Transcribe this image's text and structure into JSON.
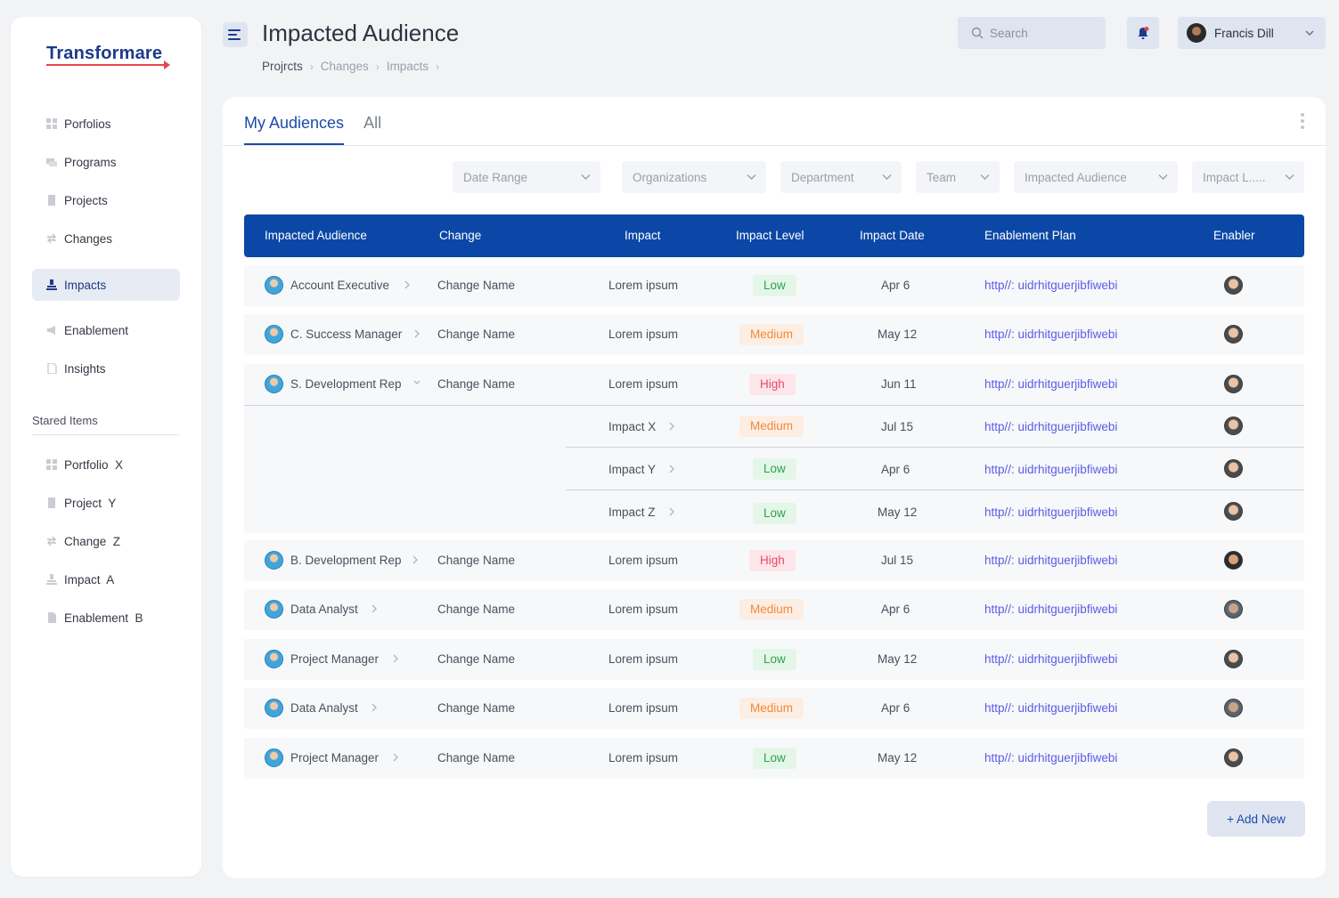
{
  "brand": {
    "name": "Transformare",
    "accent": "#e8434f",
    "primary": "#0b47a6"
  },
  "sidebar": {
    "items": [
      {
        "label": "Porfolios",
        "icon": "grid-icon"
      },
      {
        "label": "Programs",
        "icon": "stack-icon"
      },
      {
        "label": "Projects",
        "icon": "document-icon"
      },
      {
        "label": "Changes",
        "icon": "swap-arrows-icon"
      },
      {
        "label": "Impacts",
        "icon": "impact-icon"
      },
      {
        "label": "Enablement",
        "icon": "megaphone-icon"
      },
      {
        "label": "Insights",
        "icon": "file-icon"
      }
    ],
    "stared_title": "Stared Items",
    "stared": [
      {
        "label": "Portfolio  X",
        "icon": "grid-icon"
      },
      {
        "label": "Project  Y",
        "icon": "document-icon"
      },
      {
        "label": "Change  Z",
        "icon": "swap-arrows-icon"
      },
      {
        "label": "Impact  A",
        "icon": "impact-icon"
      },
      {
        "label": "Enablement  B",
        "icon": "file-icon"
      }
    ]
  },
  "header": {
    "title": "Impacted Audience",
    "breadcrumb": [
      "Projrcts",
      "Changes",
      "Impacts"
    ],
    "search_placeholder": "Search",
    "user_name": "Francis Dill"
  },
  "tabs": [
    "My Audiences",
    "All"
  ],
  "filters": [
    "Date Range",
    "Organizations",
    "Department",
    "Team",
    "Impacted Audience",
    "Impact L....."
  ],
  "table": {
    "columns": [
      "Impacted Audience",
      "Change",
      "Impact",
      "Impact Level",
      "Impact Date",
      "Enablement Plan",
      "Enabler"
    ],
    "rows": [
      {
        "audience": "Account Executive",
        "change": "Change Name",
        "impact": "Lorem ipsum",
        "level": "Low",
        "date": "Apr 6",
        "plan": "http//: uidrhitguerjibfiwebi"
      },
      {
        "audience": "C. Success Manager",
        "change": "Change Name",
        "impact": "Lorem ipsum",
        "level": "Medium",
        "date": "May 12",
        "plan": "http//: uidrhitguerjibfiwebi"
      },
      {
        "audience": "S. Development Rep",
        "change": "Change Name",
        "impact": "Lorem ipsum",
        "level": "High",
        "date": "Jun 11",
        "plan": "http//: uidrhitguerjibfiwebi"
      },
      {
        "audience": "B. Development Rep",
        "change": "Change Name",
        "impact": "Lorem ipsum",
        "level": "High",
        "date": "Jul 15",
        "plan": "http//: uidrhitguerjibfiwebi"
      },
      {
        "audience": "Data Analyst",
        "change": "Change Name",
        "impact": "Lorem ipsum",
        "level": "Medium",
        "date": "Apr 6",
        "plan": "http//: uidrhitguerjibfiwebi"
      },
      {
        "audience": "Project Manager",
        "change": "Change Name",
        "impact": "Lorem ipsum",
        "level": "Low",
        "date": "May 12",
        "plan": "http//: uidrhitguerjibfiwebi"
      },
      {
        "audience": "Data Analyst",
        "change": "Change Name",
        "impact": "Lorem ipsum",
        "level": "Medium",
        "date": "Apr 6",
        "plan": "http//: uidrhitguerjibfiwebi"
      },
      {
        "audience": "Project Manager",
        "change": "Change Name",
        "impact": "Lorem ipsum",
        "level": "Low",
        "date": "May 12",
        "plan": "http//: uidrhitguerjibfiwebi"
      }
    ],
    "subrows": [
      {
        "impact": "Impact X",
        "level": "Medium",
        "date": "Jul 15",
        "plan": "http//: uidrhitguerjibfiwebi"
      },
      {
        "impact": "Impact Y",
        "level": "Low",
        "date": "Apr 6",
        "plan": "http//: uidrhitguerjibfiwebi"
      },
      {
        "impact": "Impact Z",
        "level": "Low",
        "date": "May 12",
        "plan": "http//: uidrhitguerjibfiwebi"
      }
    ]
  },
  "add_button": "+ Add New"
}
